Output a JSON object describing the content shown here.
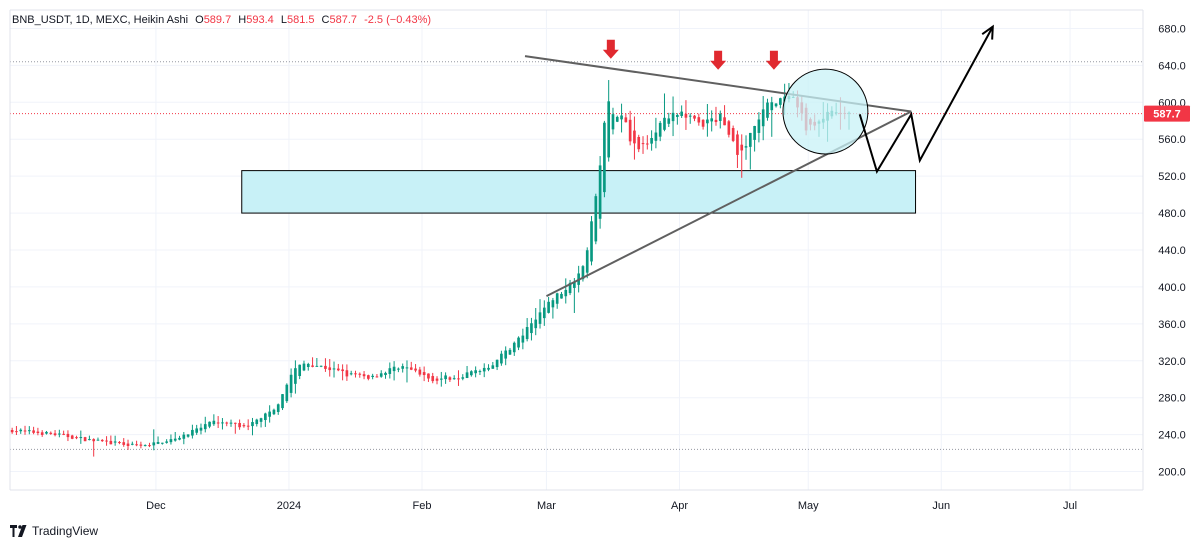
{
  "header": {
    "symbol": "BNB_USDT, 1D, MEXC, Heikin Ashi",
    "o_label": "O",
    "o_value": "589.7",
    "h_label": "H",
    "h_value": "593.4",
    "l_label": "L",
    "l_value": "581.5",
    "c_label": "C",
    "c_value": "587.7",
    "change": "-2.5 (−0.43%)"
  },
  "price_badge": "587.7",
  "footer": {
    "brand": "TradingView"
  },
  "colors": {
    "up": "#089981",
    "down": "#f23645",
    "zone": "#c8f1f7",
    "trend": "#606060",
    "arrow": "#e0292f"
  },
  "chart_data": {
    "type": "candlestick",
    "style": "Heikin Ashi",
    "ylim": [
      180,
      700
    ],
    "y_ticks": [
      200,
      240,
      280,
      320,
      360,
      400,
      440,
      480,
      520,
      560,
      600,
      640,
      680
    ],
    "y_tick_labels": [
      "200.0",
      "240.0",
      "280.0",
      "320.0",
      "360.0",
      "400.0",
      "440.0",
      "480.0",
      "520.0",
      "560.0",
      "600.0",
      "640.0",
      "680.0"
    ],
    "x_range": [
      "2023-10-28",
      "2024-07-18"
    ],
    "x_ticks": [
      "2023-12-01",
      "2024-01-01",
      "2024-02-01",
      "2024-03-01",
      "2024-04-01",
      "2024-05-01",
      "2024-06-01",
      "2024-07-01"
    ],
    "x_tick_labels": [
      "Dec",
      "2024",
      "Feb",
      "Mar",
      "Apr",
      "May",
      "Jun",
      "Jul"
    ],
    "dotted_levels": [
      644,
      224
    ],
    "current_price": 587.7,
    "price_anchors": [
      [
        "2023-10-28",
        245
      ],
      [
        "2023-11-08",
        240
      ],
      [
        "2023-11-17",
        233
      ],
      [
        "2023-11-28",
        227
      ],
      [
        "2023-12-08",
        240
      ],
      [
        "2023-12-15",
        255
      ],
      [
        "2023-12-22",
        248
      ],
      [
        "2023-12-29",
        270
      ],
      [
        "2024-01-02",
        310
      ],
      [
        "2024-01-05",
        318
      ],
      [
        "2024-01-10",
        312
      ],
      [
        "2024-01-15",
        305
      ],
      [
        "2024-01-20",
        302
      ],
      [
        "2024-01-27",
        315
      ],
      [
        "2024-02-03",
        300
      ],
      [
        "2024-02-10",
        303
      ],
      [
        "2024-02-17",
        315
      ],
      [
        "2024-02-24",
        345
      ],
      [
        "2024-03-02",
        385
      ],
      [
        "2024-03-07",
        405
      ],
      [
        "2024-03-10",
        430
      ],
      [
        "2024-03-13",
        510
      ],
      [
        "2024-03-15",
        600
      ],
      [
        "2024-03-19",
        580
      ],
      [
        "2024-03-22",
        545
      ],
      [
        "2024-03-27",
        575
      ],
      [
        "2024-04-02",
        590
      ],
      [
        "2024-04-06",
        575
      ],
      [
        "2024-04-11",
        585
      ],
      [
        "2024-04-15",
        540
      ],
      [
        "2024-04-21",
        595
      ],
      [
        "2024-04-27",
        605
      ],
      [
        "2024-05-01",
        570
      ],
      [
        "2024-05-05",
        585
      ],
      [
        "2024-05-10",
        588
      ]
    ],
    "annotations": {
      "demand_zone": {
        "x": [
          "2023-12-21",
          "2024-05-26"
        ],
        "y": [
          480,
          526
        ]
      },
      "trendline_upper": [
        [
          "2024-02-25",
          650
        ],
        [
          "2024-05-25",
          590
        ]
      ],
      "trendline_lower": [
        [
          "2024-03-01",
          390
        ],
        [
          "2024-05-25",
          590
        ]
      ],
      "circle": {
        "center": [
          "2024-05-05",
          590
        ],
        "radius_y": 46
      },
      "projection_path": [
        [
          "2024-05-13",
          587
        ],
        [
          "2024-05-17",
          525
        ],
        [
          "2024-05-25",
          587
        ],
        [
          "2024-05-27",
          537
        ],
        [
          "2024-06-13",
          682
        ]
      ],
      "down_arrows": [
        [
          "2024-03-16",
          657
        ],
        [
          "2024-04-10",
          645
        ],
        [
          "2024-04-23",
          645
        ]
      ]
    }
  }
}
